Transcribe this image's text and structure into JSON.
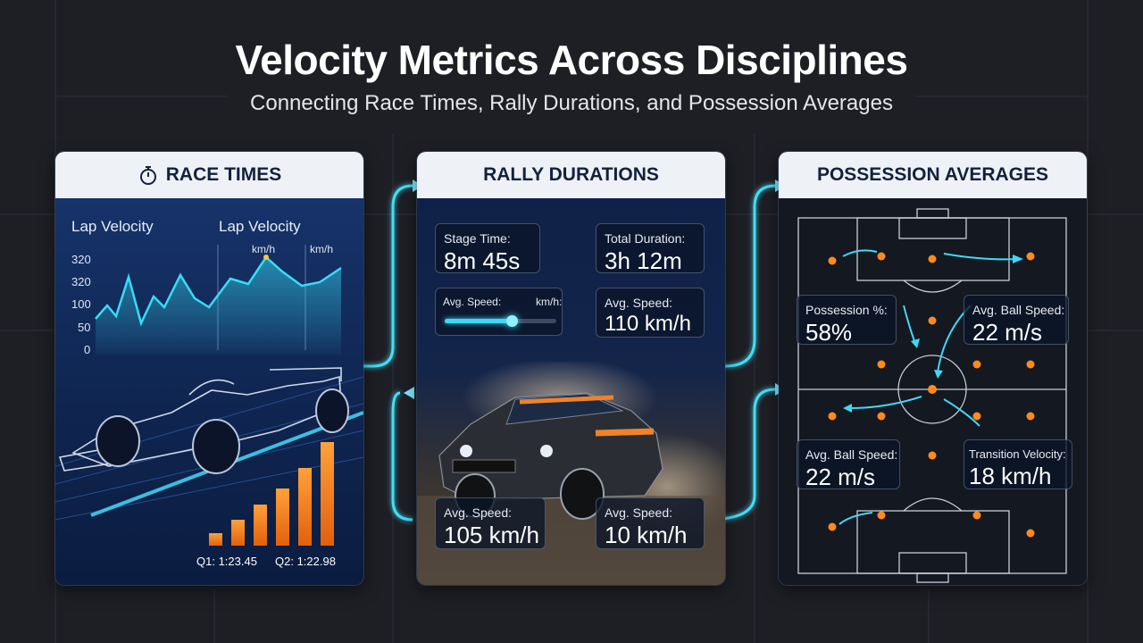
{
  "header": {
    "title": "Velocity Metrics Across Disciplines",
    "subtitle": "Connecting Race Times, Rally Durations, and Possession Averages"
  },
  "colors": {
    "background": "#1d1f25",
    "panel_header": "#eef1f6",
    "accent_cyan": "#34d6f0",
    "accent_orange": "#ff8a1e"
  },
  "race": {
    "title": "RACE TIMES",
    "icon": "stopwatch-icon",
    "chart_label_1": "Lap Velocity",
    "chart_label_2": "Lap Velocity",
    "unit_1": "km/h",
    "unit_2": "km/h",
    "y_ticks": [
      "320",
      "320",
      "100",
      "50",
      "0"
    ],
    "quarter_1": "Q1: 1:23.45",
    "quarter_2": "Q2: 1:22.98"
  },
  "rally": {
    "title": "RALLY DURATIONS",
    "stage_time_label": "Stage Time:",
    "stage_time_value": "8m 45s",
    "total_duration_label": "Total Duration:",
    "total_duration_value": "3h 12m",
    "slider_label": "Avg. Speed:",
    "slider_unit": "km/h:",
    "slider_level": 0.6,
    "avg_speed_1_label": "Avg. Speed:",
    "avg_speed_1_value": "110 km/h",
    "avg_speed_2_label": "Avg. Speed:",
    "avg_speed_2_value": "105 km/h",
    "avg_speed_3_label": "Avg. Speed:",
    "avg_speed_3_value": "10 km/h"
  },
  "possession": {
    "title": "POSSESSION AVERAGES",
    "possession_label": "Possession %:",
    "possession_value": "58%",
    "ball_speed_1_label": "Avg. Ball Speed:",
    "ball_speed_1_value": "22 m/s",
    "ball_speed_2_label": "Avg. Ball Speed:",
    "ball_speed_2_value": "22 m/s",
    "transition_label": "Transition Velocity:",
    "transition_value": "18 km/h"
  }
}
